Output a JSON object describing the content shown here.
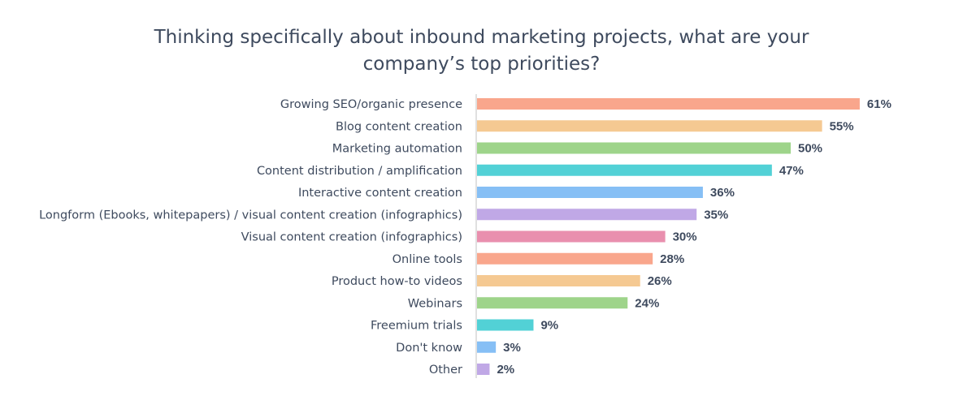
{
  "chart_data": {
    "type": "bar",
    "orientation": "horizontal",
    "title_lines": [
      "Thinking specifically about inbound marketing projects, what are your",
      "company’s top priorities?"
    ],
    "categories": [
      "Growing SEO/organic presence",
      "Blog content creation",
      "Marketing automation",
      "Content distribution / amplification",
      "Interactive content creation",
      "Longform (Ebooks, whitepapers) / visual content creation (infographics)",
      "Visual content creation (infographics)",
      "Online tools",
      "Product how-to videos",
      "Webinars",
      "Freemium trials",
      "Don't know",
      "Other"
    ],
    "values": [
      61,
      55,
      50,
      47,
      36,
      35,
      30,
      28,
      26,
      24,
      9,
      3,
      2
    ],
    "value_labels": [
      "61%",
      "55%",
      "50%",
      "47%",
      "36%",
      "35%",
      "30%",
      "28%",
      "26%",
      "24%",
      "9%",
      "3%",
      "2%"
    ],
    "colors": [
      "#f9a68c",
      "#f5c992",
      "#9ed48a",
      "#52d1d6",
      "#86bff5",
      "#c0a8e6",
      "#e98fae",
      "#f9a68c",
      "#f5c992",
      "#9ed48a",
      "#52d1d6",
      "#86bff5",
      "#c0a8e6"
    ],
    "axis_color": "#d6d6d6",
    "grid": false,
    "legend": "none"
  }
}
